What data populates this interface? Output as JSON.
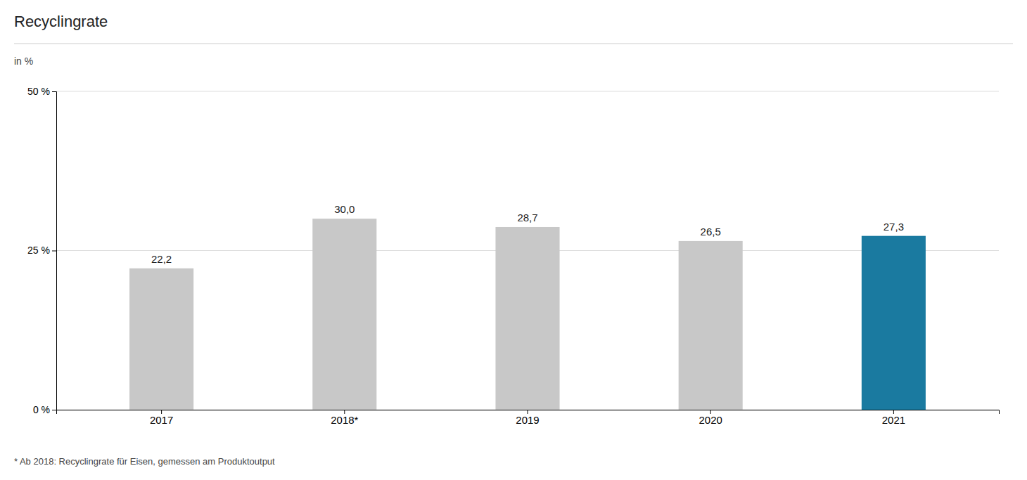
{
  "chart_data": {
    "type": "bar",
    "title": "Recyclingrate",
    "ylabel": "in %",
    "footnote": "* Ab 2018: Recyclingrate für Eisen, gemessen am Produktoutput",
    "categories": [
      "2017",
      "2018*",
      "2019",
      "2020",
      "2021"
    ],
    "values": [
      22.2,
      30.0,
      28.7,
      26.5,
      27.3
    ],
    "value_labels": [
      "22,2",
      "30,0",
      "28,7",
      "26,5",
      "27,3"
    ],
    "colors": [
      "#c8c8c8",
      "#c8c8c8",
      "#c8c8c8",
      "#c8c8c8",
      "#1a7aa0"
    ],
    "ylim": [
      0,
      50
    ],
    "yticks": [
      {
        "value": 0,
        "label": "0 %"
      },
      {
        "value": 25,
        "label": "25 %"
      },
      {
        "value": 50,
        "label": "50 %"
      }
    ],
    "grid": true,
    "data_labels": true
  }
}
